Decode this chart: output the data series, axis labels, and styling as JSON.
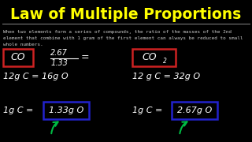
{
  "bg_color": "#000000",
  "title": "Law of Multiple Proportions",
  "title_color": "#ffff00",
  "title_fontsize": 13.5,
  "subtitle_line1": "When two elements form a series of compounds, the ratio of the masses of the 2nd",
  "subtitle_line2": "element that combine with 1 gram of the first element can always be reduced to small",
  "subtitle_line3": "whole numbers.",
  "subtitle_color": "#cccccc",
  "subtitle_fontsize": 4.3,
  "line_color": "#888888",
  "fraction_num": "2.67",
  "fraction_den": "1.33",
  "box_co_color": "#cc2222",
  "box_co2_color": "#cc2222",
  "box_val_left_color": "#2222cc",
  "box_val_right_color": "#2222cc",
  "arrow_left_color": "#00bb44",
  "arrow_right_color": "#00bb44",
  "text_color": "#ffffff"
}
